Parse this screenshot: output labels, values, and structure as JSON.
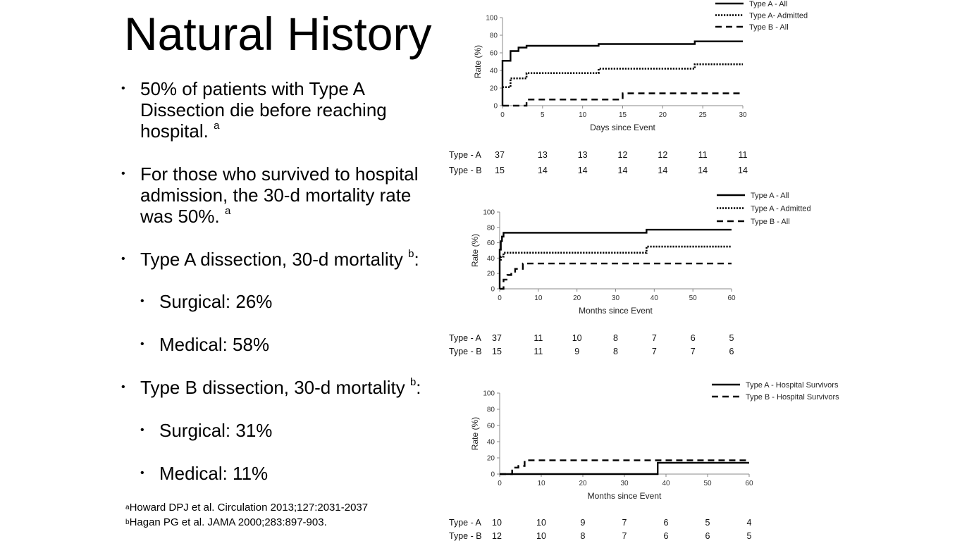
{
  "slide": {
    "title": "Natural History",
    "bullets": [
      {
        "lines": [
          "50% of patients with Type A",
          "Dissection die before reaching",
          "hospital."
        ],
        "sup": "a"
      },
      {
        "lines": [
          "For those who survived to hospital",
          "admission, the 30-d mortality rate",
          "was 50%."
        ],
        "sup": "a"
      },
      {
        "lines": [
          "Type A dissection, 30-d mortality"
        ],
        "sup": "b",
        "tail": ":"
      },
      {
        "lines": [
          "Surgical: 26%"
        ],
        "sub": true
      },
      {
        "lines": [
          "Medical: 58%"
        ],
        "sub": true
      },
      {
        "lines": [
          "Type B dissection, 30-d mortality"
        ],
        "sup": "b",
        "tail": ":"
      },
      {
        "lines": [
          "Surgical: 31%"
        ],
        "sub": true
      },
      {
        "lines": [
          "Medical: 11%"
        ],
        "sub": true
      }
    ],
    "references": [
      {
        "sup": "a",
        "text": "Howard DPJ et al. Circulation 2013;127:2031-2037"
      },
      {
        "sup": "b",
        "text": "Hagan PG et al. JAMA 2000;283:897-903."
      }
    ]
  },
  "chart_data": [
    {
      "type": "line",
      "step": true,
      "xlabel": "Days since Event",
      "ylabel": "Rate (%)",
      "xlim": [
        0,
        30
      ],
      "ylim": [
        0,
        100
      ],
      "xticks": [
        0,
        5,
        10,
        15,
        20,
        25,
        30
      ],
      "yticks": [
        0,
        20,
        40,
        60,
        80,
        100
      ],
      "legend_position": "top-right",
      "series": [
        {
          "name": "Type A - All",
          "style": "solid",
          "x": [
            0,
            0,
            1,
            1,
            2,
            2,
            3,
            12,
            24,
            30
          ],
          "y": [
            0,
            51,
            51,
            62,
            64,
            66,
            68,
            70,
            73,
            73
          ]
        },
        {
          "name": "Type A- Admitted",
          "style": "dotted",
          "x": [
            0,
            1,
            1,
            3,
            12,
            24,
            30
          ],
          "y": [
            21,
            23,
            31,
            37,
            42,
            47,
            47
          ]
        },
        {
          "name": "Type B - All",
          "style": "dashed",
          "x": [
            0,
            3,
            3,
            15,
            15,
            30
          ],
          "y": [
            0,
            0,
            7,
            7,
            14,
            14
          ]
        }
      ],
      "risk_table": {
        "rows": [
          {
            "label": "Type - A",
            "values": [
              "37",
              "13",
              "13",
              "12",
              "12",
              "11",
              "11"
            ]
          },
          {
            "label": "Type - B",
            "values": [
              "15",
              "14",
              "14",
              "14",
              "14",
              "14",
              "14"
            ]
          }
        ]
      }
    },
    {
      "type": "line",
      "step": true,
      "xlabel": "Months since Event",
      "ylabel": "Rate (%)",
      "xlim": [
        0,
        60
      ],
      "ylim": [
        0,
        100
      ],
      "xticks": [
        0,
        10,
        20,
        30,
        40,
        50,
        60
      ],
      "yticks": [
        0,
        20,
        40,
        60,
        80,
        100
      ],
      "legend_position": "top-right",
      "series": [
        {
          "name": "Type A - All",
          "style": "solid",
          "x": [
            0,
            0,
            0.3,
            0.6,
            1,
            38,
            60
          ],
          "y": [
            0,
            51,
            62,
            68,
            73,
            77,
            77
          ]
        },
        {
          "name": "Type A - Admitted",
          "style": "dotted",
          "x": [
            0,
            0.3,
            1,
            38,
            60
          ],
          "y": [
            38,
            42,
            47,
            55,
            55
          ]
        },
        {
          "name": "Type B - All",
          "style": "dashed",
          "x": [
            0,
            1,
            1,
            2,
            3,
            4,
            6,
            60
          ],
          "y": [
            0,
            0,
            12,
            18,
            21,
            26,
            33,
            33
          ]
        }
      ],
      "risk_table": {
        "rows": [
          {
            "label": "Type - A",
            "values": [
              "37",
              "11",
              "10",
              "8",
              "7",
              "6",
              "5"
            ]
          },
          {
            "label": "Type - B",
            "values": [
              "15",
              "11",
              "9",
              "8",
              "7",
              "7",
              "6"
            ]
          }
        ]
      }
    },
    {
      "type": "line",
      "step": true,
      "xlabel": "Months since Event",
      "ylabel": "Rate (%)",
      "xlim": [
        0,
        60
      ],
      "ylim": [
        0,
        100
      ],
      "xticks": [
        0,
        10,
        20,
        30,
        40,
        50,
        60
      ],
      "yticks": [
        0,
        20,
        40,
        60,
        80,
        100
      ],
      "legend_position": "top-right",
      "series": [
        {
          "name": "Type A - Hospital Survivors",
          "style": "solid",
          "x": [
            0,
            38,
            38,
            60
          ],
          "y": [
            0,
            0,
            14,
            14
          ]
        },
        {
          "name": "Type B - Hospital Survivors",
          "style": "dashed",
          "x": [
            0,
            3,
            3,
            4.5,
            6,
            60
          ],
          "y": [
            0,
            0,
            8,
            10,
            17,
            17
          ]
        }
      ],
      "risk_table": {
        "rows": [
          {
            "label": "Type - A",
            "values": [
              "10",
              "10",
              "9",
              "7",
              "6",
              "5",
              "4"
            ]
          },
          {
            "label": "Type - B",
            "values": [
              "12",
              "10",
              "8",
              "7",
              "6",
              "6",
              "5"
            ]
          }
        ]
      }
    }
  ]
}
